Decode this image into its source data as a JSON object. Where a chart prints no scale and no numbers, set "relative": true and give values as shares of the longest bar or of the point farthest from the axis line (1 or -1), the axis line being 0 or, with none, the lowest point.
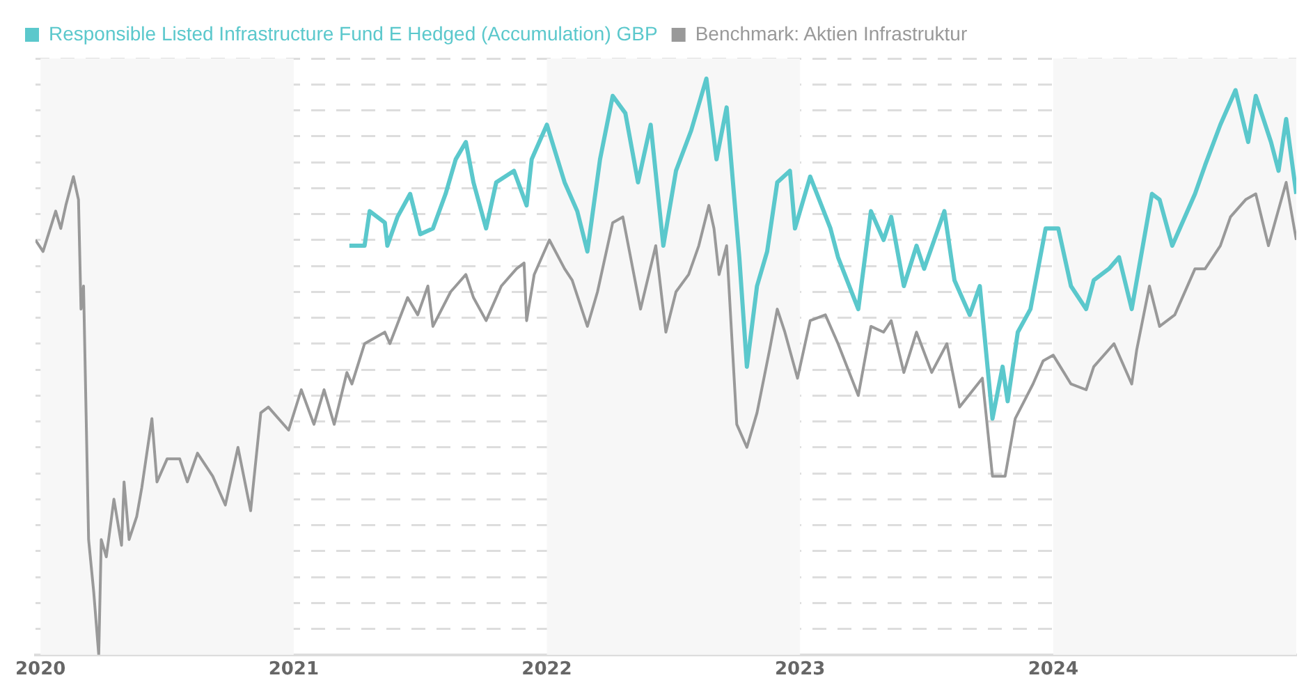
{
  "chart_data": {
    "type": "line",
    "relative": true,
    "legend": "top left",
    "grid": "y",
    "marker": "none",
    "line_style": "solid",
    "xlim": [
      2019.98,
      2024.96
    ],
    "xticks": [
      2020,
      2021,
      2022,
      2023,
      2024
    ],
    "bands": [
      {
        "axis": "x",
        "from": 2020,
        "to": 2021,
        "color": "#f7f7f7"
      },
      {
        "axis": "x",
        "from": 2022,
        "to": 2023,
        "color": "#f7f7f7"
      },
      {
        "axis": "x",
        "from": 2024,
        "to": 2024.96,
        "color": "#f7f7f7"
      }
    ],
    "series": [
      {
        "name": "Responsible Listed Infrastructure Fund E Hedged (Accumulation) GBP",
        "color": "#5bc8cc",
        "x": [
          2021.22,
          2021.28,
          2021.3,
          2021.36,
          2021.37,
          2021.41,
          2021.46,
          2021.5,
          2021.55,
          2021.6,
          2021.64,
          2021.68,
          2021.71,
          2021.76,
          2021.8,
          2021.87,
          2021.92,
          2021.94,
          2022.0,
          2022.07,
          2022.12,
          2022.16,
          2022.21,
          2022.26,
          2022.31,
          2022.36,
          2022.41,
          2022.46,
          2022.51,
          2022.57,
          2022.63,
          2022.67,
          2022.71,
          2022.76,
          2022.79,
          2022.83,
          2022.87,
          2022.91,
          2022.96,
          2022.98,
          2023.04,
          2023.12,
          2023.15,
          2023.23,
          2023.28,
          2023.33,
          2023.36,
          2023.41,
          2023.46,
          2023.49,
          2023.57,
          2023.61,
          2023.67,
          2023.71,
          2023.76,
          2023.8,
          2023.82,
          2023.86,
          2023.91,
          2023.97,
          2024.02,
          2024.07,
          2024.13,
          2024.16,
          2024.22,
          2024.26,
          2024.31,
          2024.35,
          2024.39,
          2024.42,
          2024.47,
          2024.56,
          2024.6,
          2024.66,
          2024.72,
          2024.77,
          2024.8,
          2024.86,
          2024.89,
          2024.92,
          2024.96
        ],
        "values": [
          0.71,
          0.71,
          0.77,
          0.75,
          0.71,
          0.76,
          0.8,
          0.73,
          0.74,
          0.8,
          0.86,
          0.89,
          0.82,
          0.74,
          0.82,
          0.84,
          0.78,
          0.86,
          0.92,
          0.82,
          0.77,
          0.7,
          0.86,
          0.97,
          0.94,
          0.82,
          0.92,
          0.71,
          0.84,
          0.91,
          1,
          0.86,
          0.95,
          0.69,
          0.5,
          0.64,
          0.7,
          0.82,
          0.84,
          0.74,
          0.83,
          0.74,
          0.69,
          0.6,
          0.77,
          0.72,
          0.76,
          0.64,
          0.71,
          0.67,
          0.77,
          0.65,
          0.59,
          0.64,
          0.41,
          0.5,
          0.44,
          0.56,
          0.6,
          0.74,
          0.74,
          0.64,
          0.6,
          0.65,
          0.67,
          0.69,
          0.6,
          0.7,
          0.8,
          0.79,
          0.71,
          0.8,
          0.85,
          0.92,
          0.98,
          0.89,
          0.97,
          0.89,
          0.84,
          0.93,
          0.8
        ]
      },
      {
        "name": "Benchmark: Aktien Infrastruktur",
        "color": "#999999",
        "x": [
          2019.98,
          2020.01,
          2020.06,
          2020.08,
          2020.1,
          2020.13,
          2020.15,
          2020.16,
          2020.17,
          2020.18,
          2020.19,
          2020.21,
          2020.23,
          2020.24,
          2020.26,
          2020.29,
          2020.32,
          2020.33,
          2020.35,
          2020.38,
          2020.4,
          2020.44,
          2020.46,
          2020.5,
          2020.55,
          2020.58,
          2020.62,
          2020.68,
          2020.73,
          2020.78,
          2020.83,
          2020.87,
          2020.9,
          2020.98,
          2021.03,
          2021.08,
          2021.12,
          2021.16,
          2021.21,
          2021.23,
          2021.28,
          2021.36,
          2021.38,
          2021.45,
          2021.49,
          2021.53,
          2021.55,
          2021.62,
          2021.64,
          2021.68,
          2021.71,
          2021.76,
          2021.82,
          2021.88,
          2021.91,
          2021.92,
          2021.95,
          2022.01,
          2022.07,
          2022.1,
          2022.16,
          2022.2,
          2022.26,
          2022.3,
          2022.37,
          2022.43,
          2022.47,
          2022.51,
          2022.56,
          2022.6,
          2022.64,
          2022.66,
          2022.68,
          2022.71,
          2022.75,
          2022.79,
          2022.83,
          2022.88,
          2022.91,
          2022.94,
          2022.99,
          2023.04,
          2023.1,
          2023.15,
          2023.23,
          2023.28,
          2023.33,
          2023.36,
          2023.41,
          2023.46,
          2023.52,
          2023.58,
          2023.63,
          2023.72,
          2023.76,
          2023.81,
          2023.85,
          2023.92,
          2023.96,
          2024.0,
          2024.07,
          2024.13,
          2024.16,
          2024.24,
          2024.31,
          2024.33,
          2024.38,
          2024.42,
          2024.48,
          2024.56,
          2024.6,
          2024.66,
          2024.7,
          2024.76,
          2024.8,
          2024.85,
          2024.92,
          2024.96
        ],
        "values": [
          0.72,
          0.7,
          0.77,
          0.74,
          0.78,
          0.83,
          0.79,
          0.6,
          0.64,
          0.42,
          0.2,
          0.11,
          0,
          0.2,
          0.17,
          0.27,
          0.19,
          0.3,
          0.2,
          0.24,
          0.29,
          0.41,
          0.3,
          0.34,
          0.34,
          0.3,
          0.35,
          0.31,
          0.26,
          0.36,
          0.25,
          0.42,
          0.43,
          0.39,
          0.46,
          0.4,
          0.46,
          0.4,
          0.49,
          0.47,
          0.54,
          0.56,
          0.54,
          0.62,
          0.59,
          0.64,
          0.57,
          0.63,
          0.64,
          0.66,
          0.62,
          0.58,
          0.64,
          0.67,
          0.68,
          0.58,
          0.66,
          0.72,
          0.67,
          0.65,
          0.57,
          0.63,
          0.75,
          0.76,
          0.6,
          0.71,
          0.56,
          0.63,
          0.66,
          0.71,
          0.78,
          0.74,
          0.66,
          0.71,
          0.4,
          0.36,
          0.42,
          0.53,
          0.6,
          0.56,
          0.48,
          0.58,
          0.59,
          0.54,
          0.45,
          0.57,
          0.56,
          0.58,
          0.49,
          0.56,
          0.49,
          0.54,
          0.43,
          0.48,
          0.31,
          0.31,
          0.41,
          0.47,
          0.51,
          0.52,
          0.47,
          0.46,
          0.5,
          0.54,
          0.47,
          0.53,
          0.64,
          0.57,
          0.59,
          0.67,
          0.67,
          0.71,
          0.76,
          0.79,
          0.8,
          0.71,
          0.82,
          0.72
        ]
      }
    ]
  }
}
